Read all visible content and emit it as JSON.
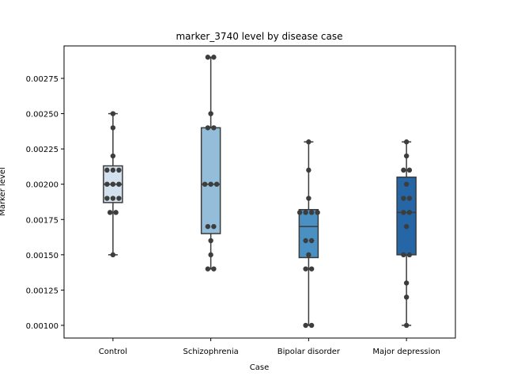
{
  "chart_data": {
    "type": "box",
    "title": "marker_3740 level by disease case",
    "xlabel": "Case",
    "ylabel": "Marker level",
    "categories": [
      "Control",
      "Schizophrenia",
      "Bipolar disorder",
      "Major depression"
    ],
    "ylim": [
      0.00091,
      0.00298
    ],
    "yticks": [
      0.001,
      0.00125,
      0.0015,
      0.00175,
      0.002,
      0.00225,
      0.0025,
      0.00275
    ],
    "ytick_labels": [
      "0.00100",
      "0.00125",
      "0.00150",
      "0.00175",
      "0.00200",
      "0.00225",
      "0.00250",
      "0.00275"
    ],
    "box_colors": [
      "#d3e1ef",
      "#93bdd8",
      "#4b90c3",
      "#2566a6"
    ],
    "boxes": [
      {
        "whisker_low": 0.0015,
        "q1": 0.00187,
        "median": 0.002,
        "q3": 0.00213,
        "whisker_high": 0.0025
      },
      {
        "whisker_low": 0.0014,
        "q1": 0.00165,
        "median": 0.002,
        "q3": 0.0024,
        "whisker_high": 0.0029
      },
      {
        "whisker_low": 0.001,
        "q1": 0.00148,
        "median": 0.0017,
        "q3": 0.00182,
        "whisker_high": 0.0023
      },
      {
        "whisker_low": 0.001,
        "q1": 0.0015,
        "median": 0.0018,
        "q3": 0.00205,
        "whisker_high": 0.0023
      }
    ],
    "points": [
      [
        0.0025,
        0.0024,
        0.0022,
        0.0021,
        0.0021,
        0.0021,
        0.002,
        0.002,
        0.002,
        0.0019,
        0.0019,
        0.0019,
        0.0018,
        0.0018,
        0.0015
      ],
      [
        0.0029,
        0.0029,
        0.0025,
        0.0024,
        0.0024,
        0.002,
        0.002,
        0.002,
        0.0017,
        0.0017,
        0.0016,
        0.0015,
        0.0014,
        0.0014
      ],
      [
        0.0023,
        0.0021,
        0.0019,
        0.0018,
        0.0018,
        0.0018,
        0.0018,
        0.0016,
        0.0016,
        0.0015,
        0.0014,
        0.0014,
        0.001,
        0.001
      ],
      [
        0.0023,
        0.0022,
        0.0021,
        0.0021,
        0.002,
        0.0019,
        0.0019,
        0.0018,
        0.0018,
        0.0017,
        0.0015,
        0.0015,
        0.0013,
        0.0012,
        0.001
      ]
    ],
    "grid": false,
    "legend": "none"
  }
}
